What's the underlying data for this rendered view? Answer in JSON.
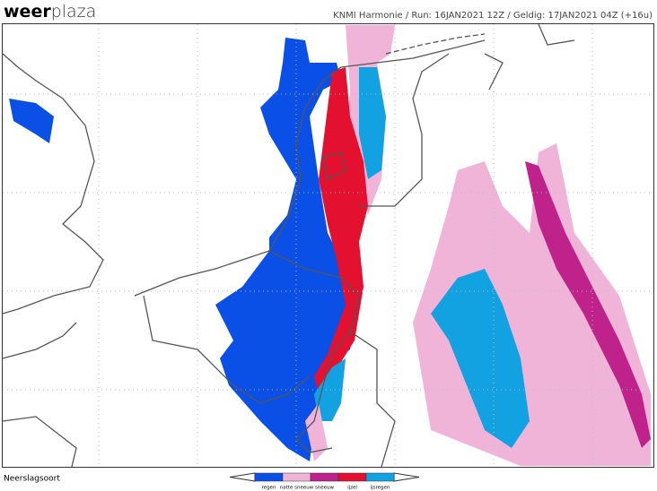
{
  "logo": {
    "bold": "weer",
    "light": "plaza"
  },
  "header": "KNMI Harmonie / Run: 16JAN2021 12Z / Geldig: 17JAN2021 04Z (+16u)",
  "legend_title": "Neerslagsoort",
  "legend": [
    {
      "label": "regen",
      "color": "#0a4fe6"
    },
    {
      "label": "natte sneeuw",
      "color": "#f0b4d9"
    },
    {
      "label": "sneeuw",
      "color": "#c0228c"
    },
    {
      "label": "ijzel",
      "color": "#e3112f"
    },
    {
      "label": "ijsregen",
      "color": "#12a2e2"
    }
  ]
}
